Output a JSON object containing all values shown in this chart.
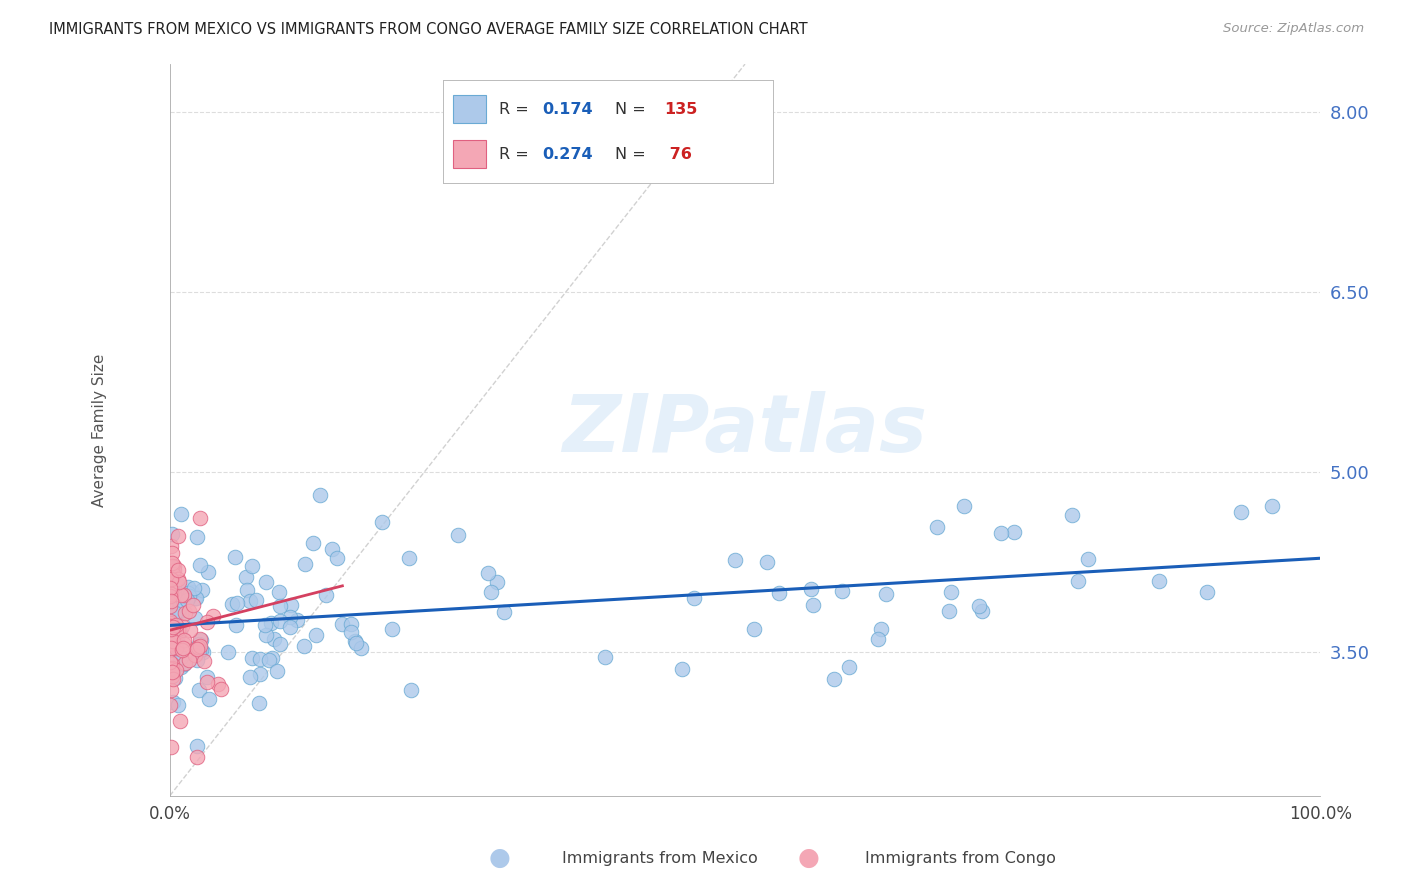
{
  "title": "IMMIGRANTS FROM MEXICO VS IMMIGRANTS FROM CONGO AVERAGE FAMILY SIZE CORRELATION CHART",
  "source": "Source: ZipAtlas.com",
  "ylabel": "Average Family Size",
  "xlim": [
    0,
    1.0
  ],
  "ylim": [
    2.3,
    8.4
  ],
  "yticks": [
    3.5,
    5.0,
    6.5,
    8.0
  ],
  "xticklabels": [
    "0.0%",
    "100.0%"
  ],
  "ytick_color": "#4472c4",
  "mexico_color": "#adc9ea",
  "mexico_edge": "#6aaad4",
  "congo_color": "#f4a7b5",
  "congo_edge": "#e06080",
  "mexico_trend_color": "#1a5eb8",
  "congo_trend_color": "#d44060",
  "mexico_R": 0.174,
  "mexico_N": 135,
  "congo_R": 0.274,
  "congo_N": 76,
  "legend_label_mexico": "Immigrants from Mexico",
  "legend_label_congo": "Immigrants from Congo",
  "background_color": "#ffffff",
  "grid_color": "#cccccc",
  "watermark": "ZIPatlas",
  "ref_line_color": "#cccccc",
  "mexico_trend_y0": 3.72,
  "mexico_trend_y1": 4.28,
  "congo_trend_y0": 3.68,
  "congo_trend_y1": 4.05
}
